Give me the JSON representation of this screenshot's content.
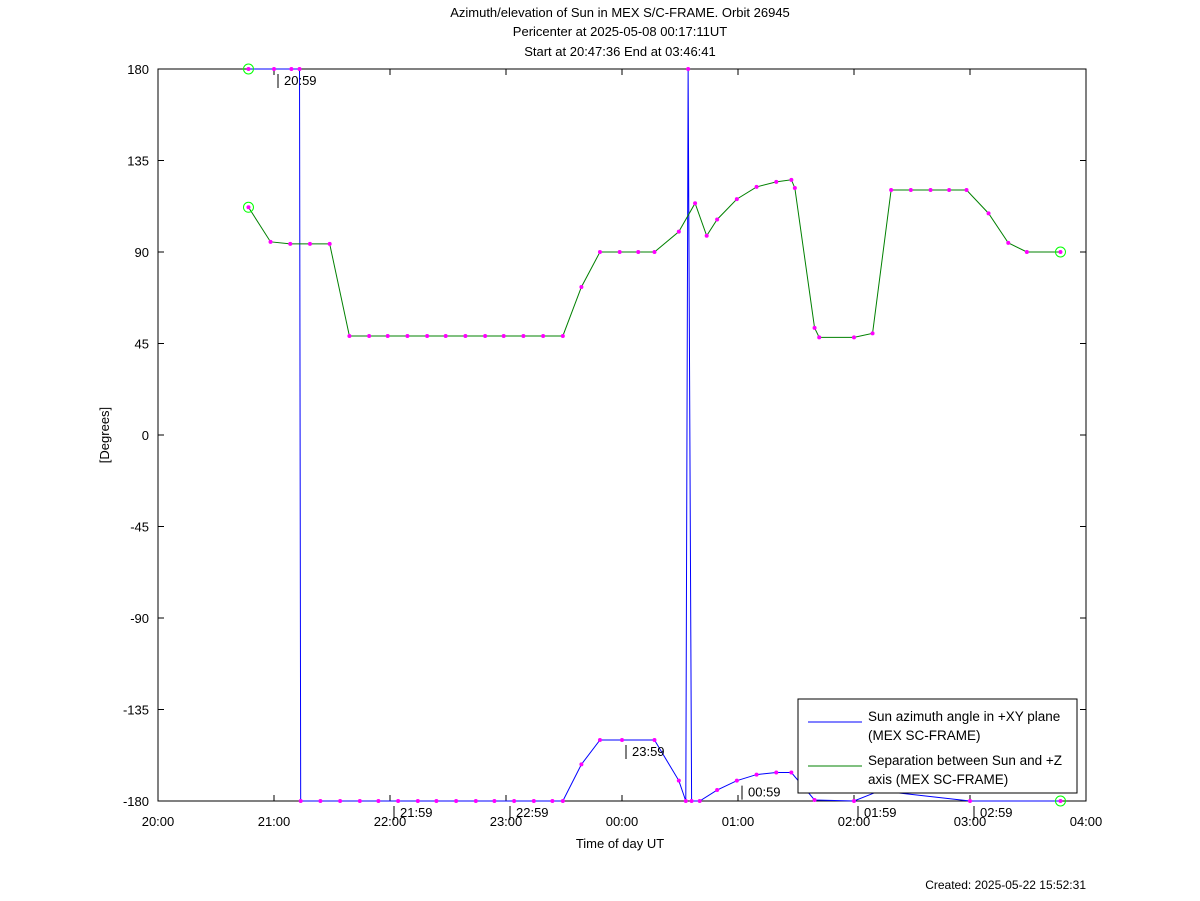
{
  "chart_data": {
    "type": "line",
    "title": "Azimuth/elevation of Sun in MEX S/C-FRAME.  Orbit 26945",
    "subtitle": "Pericenter at 2025-05-08 00:17:11UT",
    "subtitle2": "Start at 20:47:36 End at 03:46:41",
    "x_label": "Time of day UT",
    "y_label": "[Degrees]",
    "footer": "Created: 2025-05-22 15:52:31",
    "xlim": [
      20,
      28
    ],
    "xticks": [
      {
        "value": 20,
        "label": "20:00"
      },
      {
        "value": 21,
        "label": "21:00"
      },
      {
        "value": 22,
        "label": "22:00"
      },
      {
        "value": 23,
        "label": "23:00"
      },
      {
        "value": 24,
        "label": "00:00"
      },
      {
        "value": 25,
        "label": "01:00"
      },
      {
        "value": 26,
        "label": "02:00"
      },
      {
        "value": 27,
        "label": "03:00"
      },
      {
        "value": 28,
        "label": "04:00"
      }
    ],
    "ylim": [
      -180,
      180
    ],
    "yticks": [
      180,
      135,
      90,
      45,
      0,
      -45,
      -90,
      -135,
      -180
    ],
    "legend": "lower right",
    "series": [
      {
        "name": "Sun azimuth angle in +XY plane (MEX SC-FRAME)",
        "color": "#0000ff",
        "x": [
          20.78,
          21.0,
          21.15,
          21.22,
          21.23,
          21.4,
          21.57,
          21.74,
          21.9,
          22.07,
          22.24,
          22.4,
          22.57,
          22.74,
          22.9,
          23.07,
          23.24,
          23.4,
          23.49,
          23.65,
          23.81,
          24.0,
          24.28,
          24.49,
          24.55,
          24.57,
          24.6,
          24.67,
          24.82,
          24.99,
          25.16,
          25.33,
          25.46,
          25.66,
          26.0,
          26.22,
          27.0,
          27.78
        ],
        "values": [
          180,
          180,
          180,
          180,
          -180,
          -180,
          -180,
          -180,
          -180,
          -180,
          -180,
          -180,
          -180,
          -180,
          -180,
          -180,
          -180,
          -180,
          -180,
          -162,
          -150,
          -150,
          -150,
          -170,
          -180,
          180,
          -180,
          -180,
          -174.6,
          -170,
          -167,
          -166,
          -166,
          -179.5,
          -180,
          -175,
          -180,
          -180
        ]
      },
      {
        "name": "Separation between Sun and +Z axis (MEX SC-FRAME)",
        "color": "#008000",
        "x": [
          20.78,
          20.97,
          21.14,
          21.31,
          21.48,
          21.65,
          21.82,
          21.98,
          22.15,
          22.32,
          22.48,
          22.65,
          22.82,
          22.98,
          23.15,
          23.32,
          23.49,
          23.65,
          23.81,
          23.98,
          24.14,
          24.28,
          24.49,
          24.63,
          24.73,
          24.82,
          24.99,
          25.16,
          25.33,
          25.46,
          25.49,
          25.66,
          25.7,
          26.0,
          26.16,
          26.32,
          26.49,
          26.66,
          26.82,
          26.97,
          27.16,
          27.33,
          27.49,
          27.78
        ],
        "values": [
          112,
          95,
          94,
          94,
          94,
          48.7,
          48.7,
          48.7,
          48.7,
          48.7,
          48.7,
          48.7,
          48.7,
          48.7,
          48.7,
          48.7,
          48.7,
          72.8,
          90,
          90,
          90,
          90,
          100,
          114,
          98,
          106,
          116,
          122,
          124.5,
          125.5,
          121.5,
          52.7,
          48,
          48,
          50,
          120.5,
          120.5,
          120.5,
          120.5,
          120.5,
          109,
          94.5,
          90,
          90
        ]
      }
    ],
    "annotations": [
      {
        "x": 21.0,
        "y": 180,
        "text": "20:59"
      },
      {
        "x": 22.0,
        "y": -180,
        "text": "21:59"
      },
      {
        "x": 23.0,
        "y": -180,
        "text": "22:59"
      },
      {
        "x": 24.0,
        "y": -150,
        "text": "23:59"
      },
      {
        "x": 25.0,
        "y": -170,
        "text": "00:59"
      },
      {
        "x": 26.0,
        "y": -180,
        "text": "01:59"
      },
      {
        "x": 27.0,
        "y": -180,
        "text": "02:59"
      }
    ]
  }
}
